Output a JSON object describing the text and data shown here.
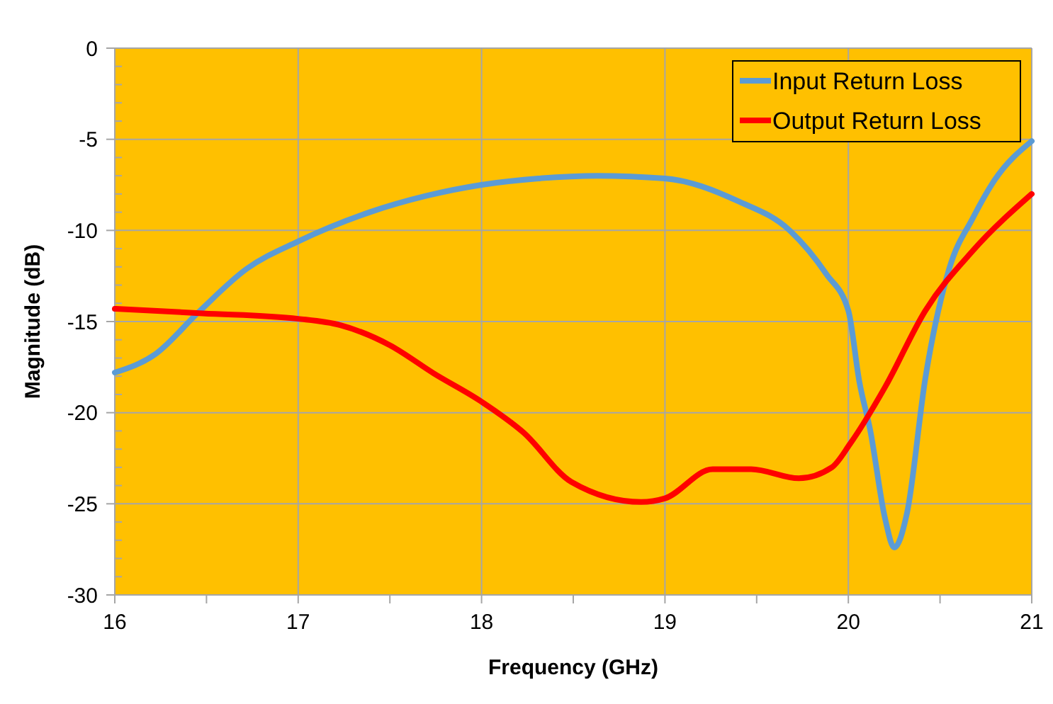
{
  "chart_data": {
    "type": "line",
    "xlabel": "Frequency (GHz)",
    "ylabel": "Magnitude (dB)",
    "xlim": [
      16,
      21
    ],
    "xticks": [
      16,
      {
        "value": 16.5,
        "label": null
      },
      17,
      {
        "value": 17.5,
        "label": null
      },
      18,
      {
        "value": 18.5,
        "label": null
      },
      19,
      {
        "value": 19.5,
        "label": null
      },
      20,
      {
        "value": 20.5,
        "label": null
      },
      21
    ],
    "ylim": [
      -30,
      0
    ],
    "yticks": [
      -30,
      {
        "value": -29,
        "label": null
      },
      {
        "value": -28,
        "label": null
      },
      {
        "value": -27,
        "label": null
      },
      {
        "value": -26,
        "label": null
      },
      -25,
      {
        "value": -24,
        "label": null
      },
      {
        "value": -23,
        "label": null
      },
      {
        "value": -22,
        "label": null
      },
      {
        "value": -21,
        "label": null
      },
      -20,
      {
        "value": -19,
        "label": null
      },
      {
        "value": -18,
        "label": null
      },
      {
        "value": -17,
        "label": null
      },
      {
        "value": -16,
        "label": null
      },
      -15,
      {
        "value": -14,
        "label": null
      },
      {
        "value": -13,
        "label": null
      },
      {
        "value": -12,
        "label": null
      },
      {
        "value": -11,
        "label": null
      },
      -10,
      {
        "value": -9,
        "label": null
      },
      {
        "value": -8,
        "label": null
      },
      {
        "value": -7,
        "label": null
      },
      {
        "value": -6,
        "label": null
      },
      -5,
      {
        "value": -4,
        "label": null
      },
      {
        "value": -3,
        "label": null
      },
      {
        "value": -2,
        "label": null
      },
      {
        "value": -1,
        "label": null
      },
      0
    ],
    "grid": true,
    "legend": "top right",
    "line_style": "solid",
    "series": [
      {
        "name": "Input Return Loss",
        "color": "#5b9bd5",
        "x": [
          16,
          16.22,
          16.46,
          16.72,
          17,
          17.39,
          17.7,
          18,
          18.31,
          18.63,
          19,
          19.4,
          19.68,
          19.88,
          20,
          20.06,
          20.12,
          20.2,
          20.25,
          20.32,
          20.42,
          20.55,
          20.68,
          20.8,
          21
        ],
        "values": [
          -17.8,
          -16.8,
          -14.45,
          -12.1,
          -10.6,
          -9,
          -8.1,
          -7.5,
          -7.15,
          -7,
          -7.15,
          -8.4,
          -10,
          -12.4,
          -14.4,
          -18.3,
          -21,
          -25.8,
          -27.4,
          -25.5,
          -18.1,
          -12.1,
          -9.3,
          -7.2,
          -5.1
        ]
      },
      {
        "name": "Output Return Loss",
        "color": "#ff0000",
        "x": [
          16,
          16.48,
          17,
          17.23,
          17.5,
          17.74,
          18,
          18.23,
          18.49,
          18.87,
          19,
          19.26,
          19.47,
          19.73,
          19.91,
          20.01,
          20.2,
          20.42,
          20.68,
          21
        ],
        "values": [
          -14.3,
          -14.55,
          -14.85,
          -15.2,
          -16.3,
          -17.85,
          -19.4,
          -21.1,
          -23.8,
          -24.9,
          -24.7,
          -23.1,
          -23.1,
          -23.6,
          -23,
          -21.7,
          -18.6,
          -14.4,
          -11.1,
          -8
        ]
      }
    ]
  }
}
